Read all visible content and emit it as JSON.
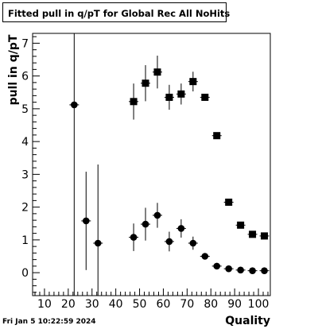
{
  "title": "Fitted pull in q/pT for Global Rec All NoHits",
  "timestamp": "Fri Jan  5 10:22:59 2024",
  "chart_data": {
    "type": "scatter",
    "title": "Fitted pull in q/pT for Global Rec All NoHits",
    "xlabel": "Quality",
    "ylabel": "pull in q/pT",
    "xlim": [
      5,
      105
    ],
    "ylim": [
      -0.7,
      7.3
    ],
    "x_ticks": [
      10,
      20,
      30,
      40,
      50,
      60,
      70,
      80,
      90,
      100
    ],
    "y_ticks": [
      0,
      1,
      2,
      3,
      4,
      5,
      6,
      7
    ],
    "grid": false,
    "series": [
      {
        "marker": "square",
        "x": [
          47.5,
          52.5,
          57.5,
          62.5,
          67.5,
          72.5,
          77.5,
          82.5,
          87.5,
          92.5,
          97.5,
          102.5
        ],
        "y": [
          5.22,
          5.78,
          6.12,
          5.35,
          5.45,
          5.83,
          5.35,
          4.18,
          2.15,
          1.45,
          1.17,
          1.12
        ],
        "yerr": [
          0.55,
          0.55,
          0.5,
          0.38,
          0.32,
          0.3,
          0.1,
          0.05,
          0.05,
          0.05,
          0.04,
          0.04
        ]
      },
      {
        "marker": "circle",
        "x": [
          22.5,
          27.5,
          32.5,
          47.5,
          52.5,
          57.5,
          62.5,
          67.5,
          72.5,
          77.5,
          82.5,
          87.5,
          92.5,
          97.5,
          102.5
        ],
        "y": [
          5.12,
          1.58,
          0.9,
          1.08,
          1.48,
          1.75,
          0.95,
          1.35,
          0.9,
          0.5,
          0.2,
          0.12,
          0.08,
          0.06,
          0.06
        ],
        "yerr": [
          5.5,
          1.5,
          2.4,
          0.42,
          0.5,
          0.38,
          0.3,
          0.28,
          0.2,
          0.08,
          0.04,
          0.04,
          0.03,
          0.03,
          0.03
        ],
        "ylo_clip": [
          -0.7,
          null,
          -0.7,
          null,
          null,
          null,
          null,
          null,
          null,
          null,
          null,
          null,
          null,
          null,
          null
        ]
      }
    ]
  }
}
